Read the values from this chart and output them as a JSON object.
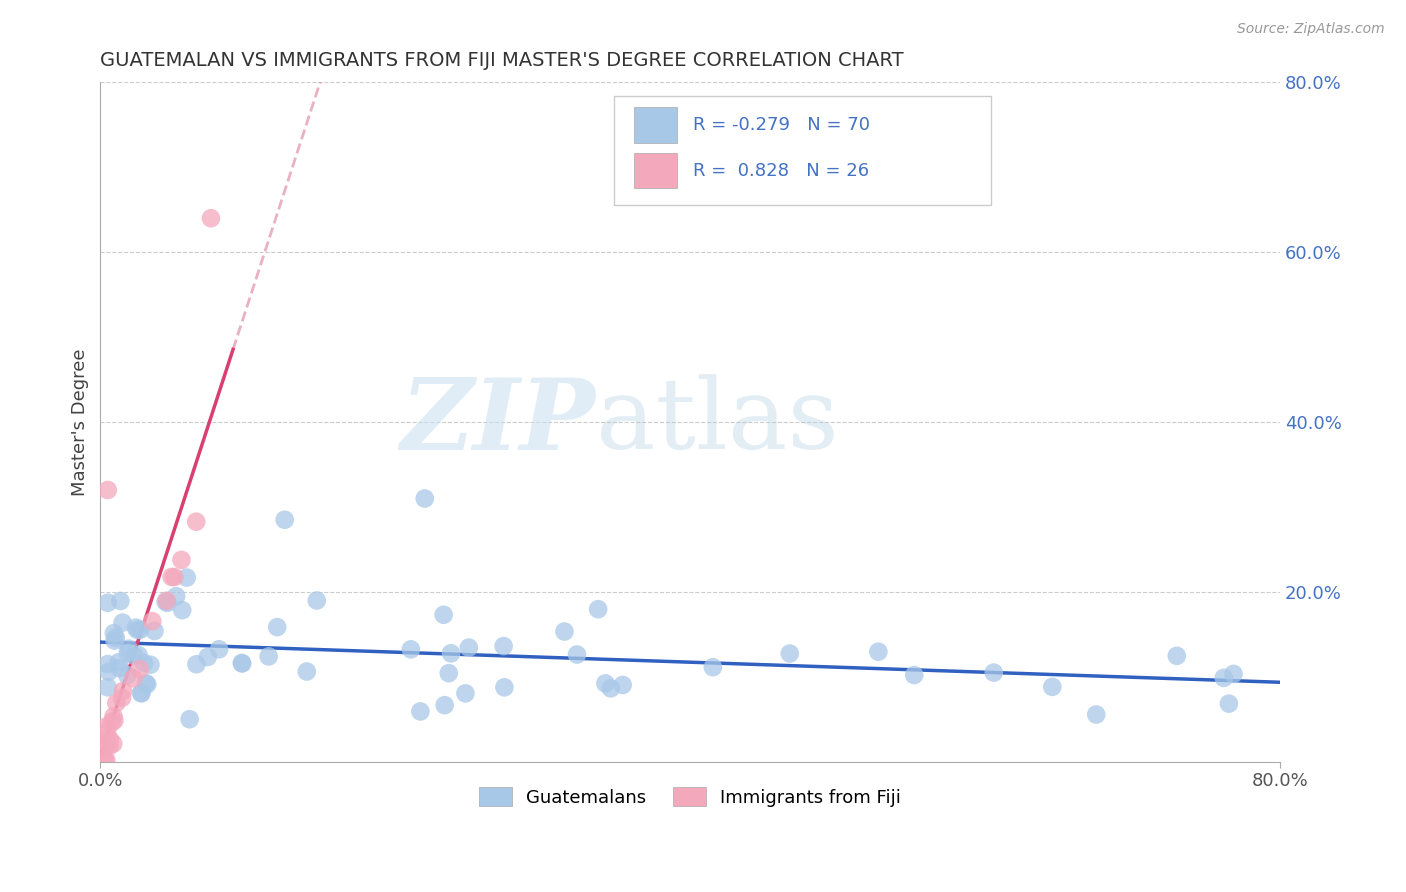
{
  "title": "GUATEMALAN VS IMMIGRANTS FROM FIJI MASTER'S DEGREE CORRELATION CHART",
  "source": "Source: ZipAtlas.com",
  "ylabel": "Master's Degree",
  "xlim": [
    0.0,
    0.8
  ],
  "ylim": [
    0.0,
    0.8
  ],
  "legend_labels": [
    "Guatemalans",
    "Immigrants from Fiji"
  ],
  "blue_color": "#a8c8e8",
  "pink_color": "#f4a8bc",
  "blue_line_color": "#3060c0",
  "pink_line_color": "#d84070",
  "pink_dash_color": "#e090a8",
  "R_blue": -0.279,
  "N_blue": 70,
  "R_pink": 0.828,
  "N_pink": 26,
  "gridline_color": "#cccccc",
  "background_color": "#ffffff",
  "right_tick_color": "#4472c4",
  "title_color": "#333333",
  "source_color": "#999999"
}
